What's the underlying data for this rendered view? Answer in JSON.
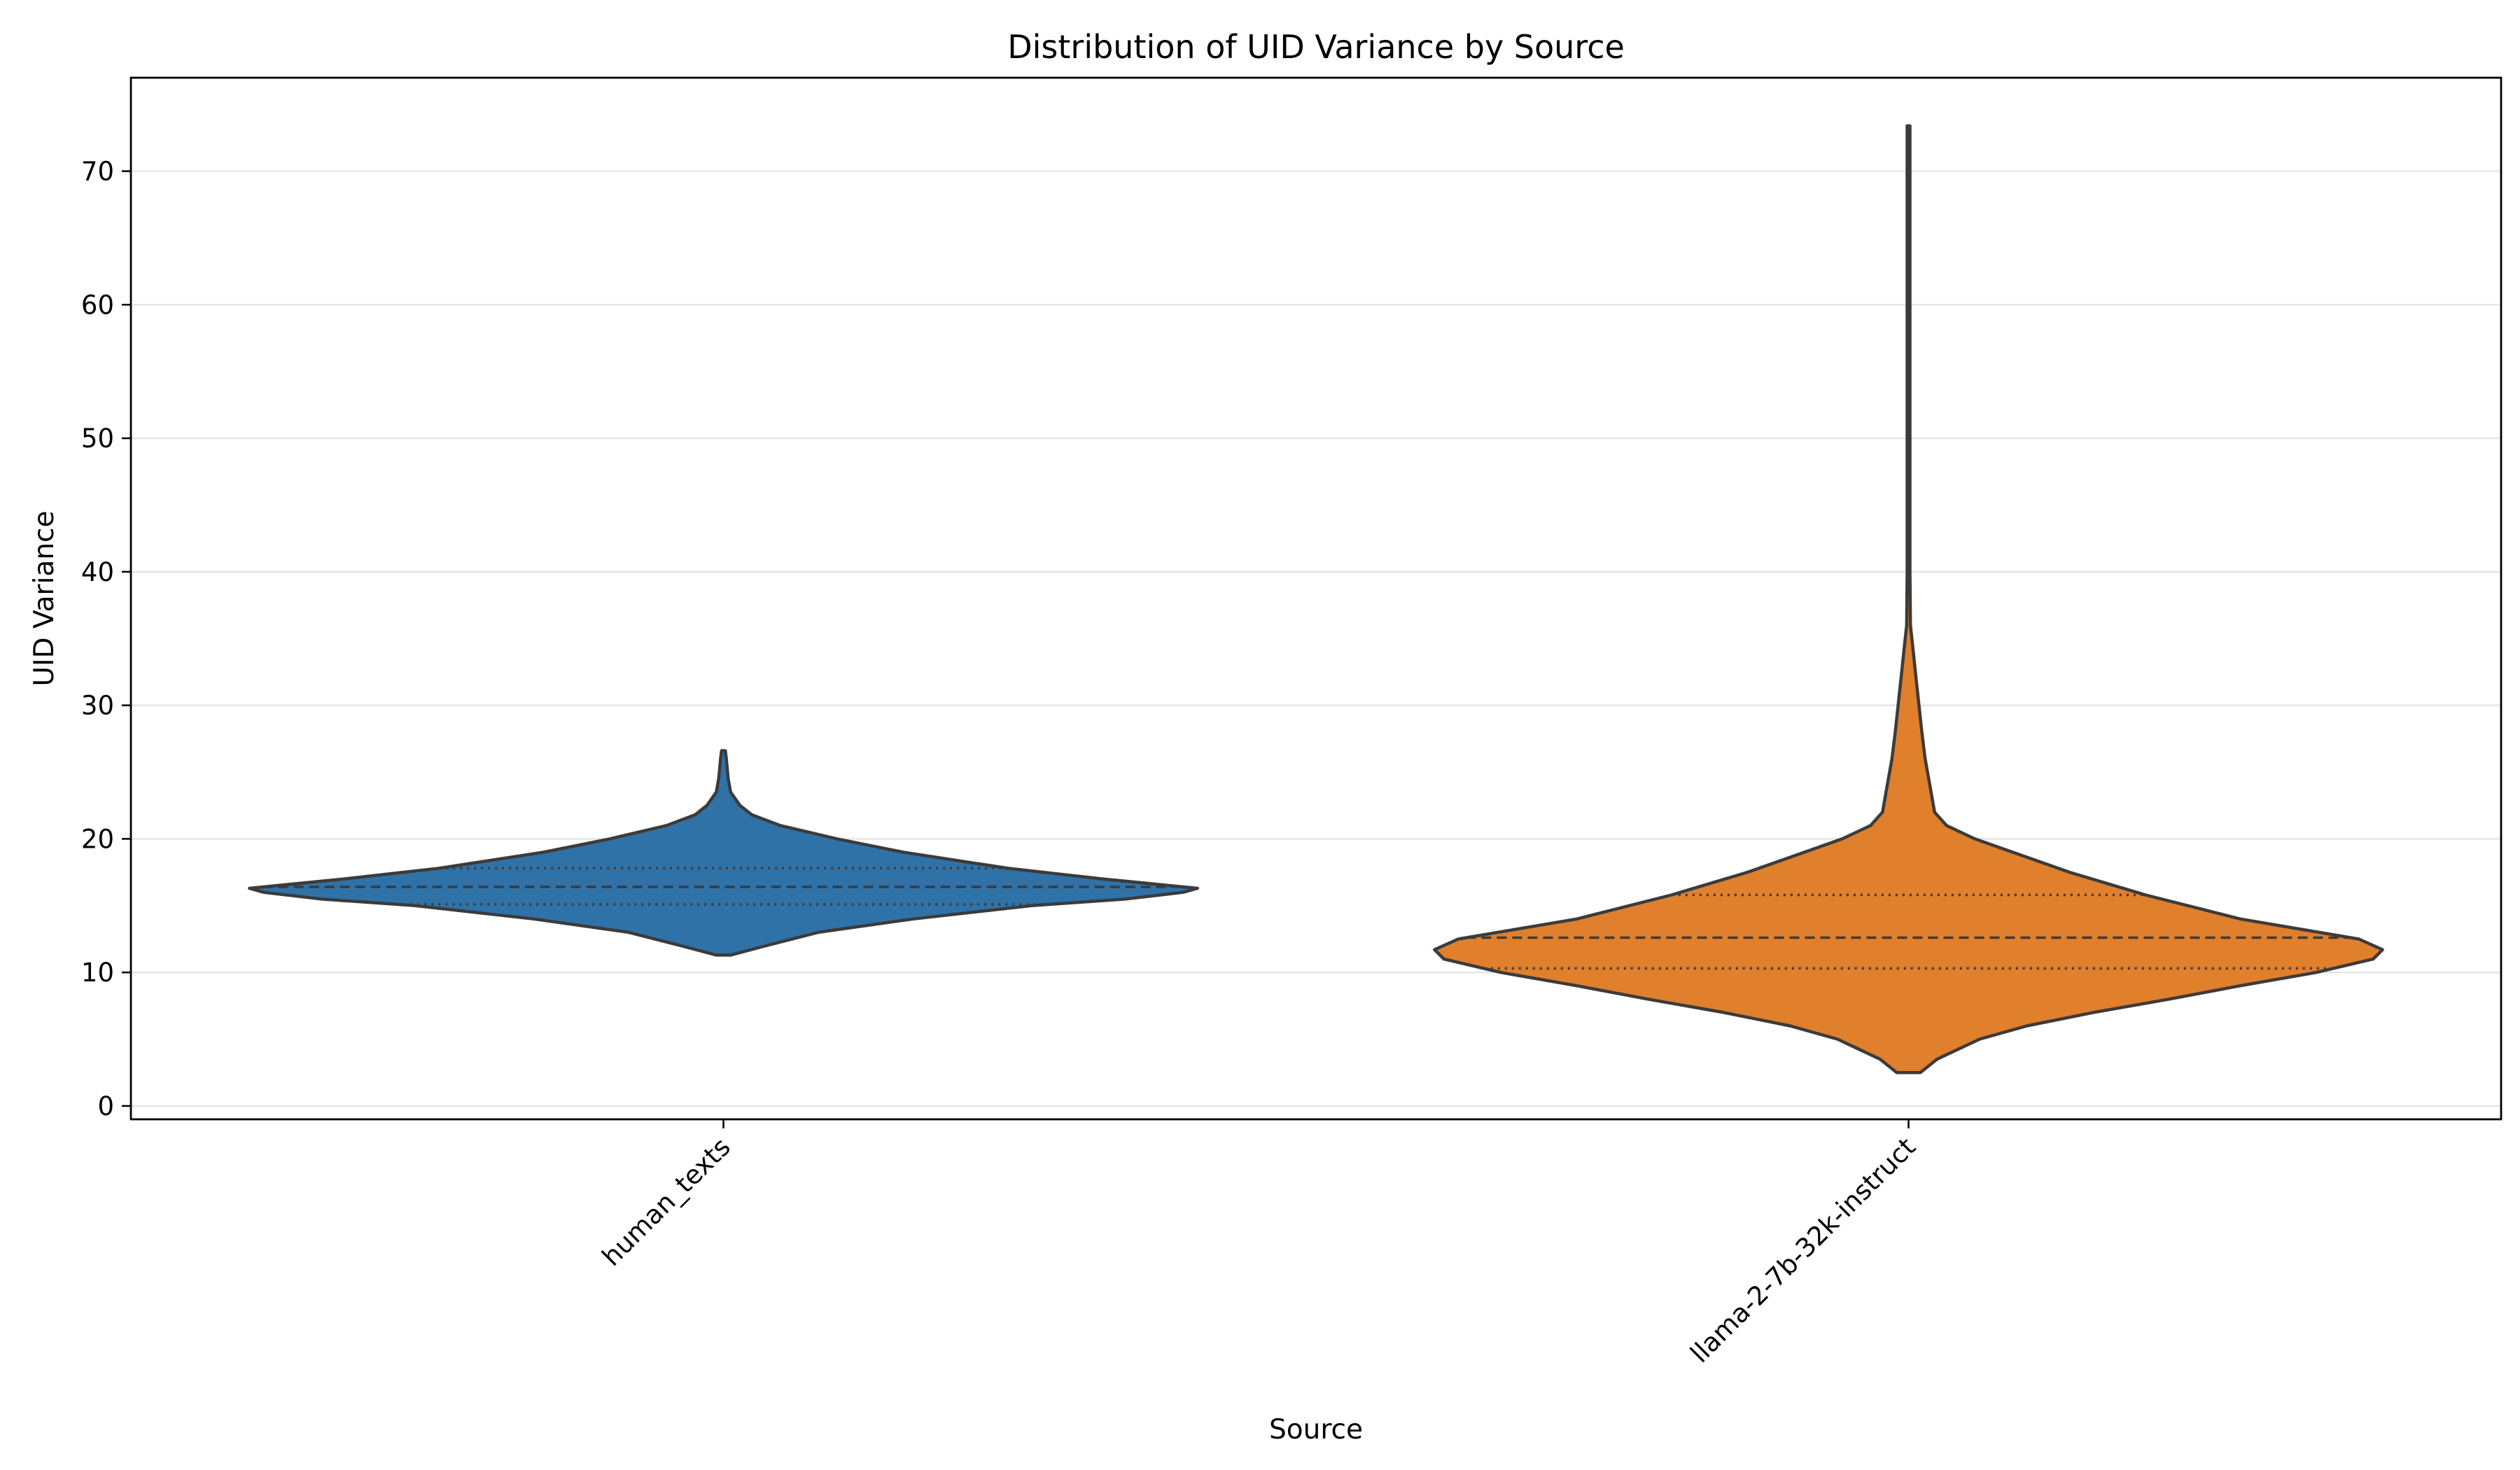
{
  "chart_data": {
    "type": "violin",
    "title": "Distribution of UID Variance by Source",
    "xlabel": "Source",
    "ylabel": "UID Variance",
    "ylim": [
      -1,
      77
    ],
    "yticks": [
      0,
      10,
      20,
      30,
      40,
      50,
      60,
      70
    ],
    "grid": "horizontal",
    "inner": "quartile",
    "categories": [
      "human_texts",
      "llama-2-7b-32k-instruct"
    ],
    "series": [
      {
        "category": "human_texts",
        "color": "#2f72a7",
        "min": 11.3,
        "max": 26.6,
        "q1": 15.1,
        "median": 16.4,
        "q3": 17.8,
        "density": [
          [
            11.3,
            0.015
          ],
          [
            12.0,
            0.09
          ],
          [
            13.0,
            0.2
          ],
          [
            14.0,
            0.4
          ],
          [
            15.0,
            0.65
          ],
          [
            15.5,
            0.85
          ],
          [
            16.0,
            0.97
          ],
          [
            16.3,
            1.0
          ],
          [
            17.0,
            0.8
          ],
          [
            17.8,
            0.6
          ],
          [
            19.0,
            0.38
          ],
          [
            20.0,
            0.24
          ],
          [
            21.0,
            0.12
          ],
          [
            21.8,
            0.06
          ],
          [
            22.5,
            0.035
          ],
          [
            23.5,
            0.015
          ],
          [
            24.5,
            0.01
          ],
          [
            26.0,
            0.006
          ],
          [
            26.6,
            0.004
          ]
        ]
      },
      {
        "category": "llama-2-7b-32k-instruct",
        "color": "#e07f2c",
        "min": 2.5,
        "max": 73.4,
        "q1": 10.3,
        "median": 12.6,
        "q3": 15.8,
        "density": [
          [
            2.5,
            0.025
          ],
          [
            3.5,
            0.06
          ],
          [
            5.0,
            0.15
          ],
          [
            6.0,
            0.25
          ],
          [
            7.0,
            0.39
          ],
          [
            8.0,
            0.55
          ],
          [
            9.0,
            0.7
          ],
          [
            10.0,
            0.86
          ],
          [
            11.0,
            0.98
          ],
          [
            11.7,
            1.0
          ],
          [
            12.5,
            0.95
          ],
          [
            14.0,
            0.7
          ],
          [
            15.8,
            0.5
          ],
          [
            17.5,
            0.34
          ],
          [
            19.0,
            0.22
          ],
          [
            20.0,
            0.14
          ],
          [
            21.0,
            0.08
          ],
          [
            22.0,
            0.055
          ],
          [
            24.0,
            0.045
          ],
          [
            26.0,
            0.035
          ],
          [
            28.0,
            0.028
          ],
          [
            30.0,
            0.022
          ],
          [
            32.0,
            0.016
          ],
          [
            34.0,
            0.01
          ],
          [
            36.0,
            0.004
          ],
          [
            40.0,
            0.003
          ],
          [
            50.0,
            0.003
          ],
          [
            60.0,
            0.003
          ],
          [
            70.0,
            0.003
          ],
          [
            73.4,
            0.003
          ]
        ]
      }
    ]
  }
}
